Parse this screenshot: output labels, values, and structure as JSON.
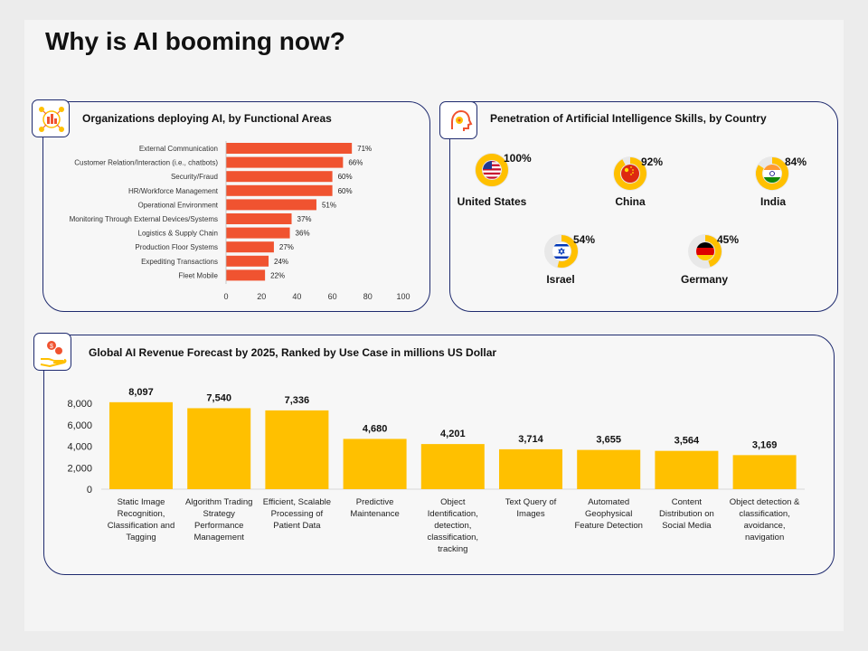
{
  "page": {
    "title": "Why is AI booming now?"
  },
  "colors": {
    "bar_red": "#f05330",
    "bar_yellow": "#ffc000",
    "border": "#1e2a6e"
  },
  "panel1": {
    "title": "Organizations deploying AI, by Functional Areas",
    "icon": "org-network-icon"
  },
  "panel2": {
    "title": "Penetration of Artificial Intelligence Skills, by Country",
    "icon": "ai-head-icon",
    "countries": [
      {
        "name": "United States",
        "pct": "100%",
        "value": 100,
        "flag": "us"
      },
      {
        "name": "China",
        "pct": "92%",
        "value": 92,
        "flag": "cn"
      },
      {
        "name": "India",
        "pct": "84%",
        "value": 84,
        "flag": "in"
      },
      {
        "name": "Israel",
        "pct": "54%",
        "value": 54,
        "flag": "il"
      },
      {
        "name": "Germany",
        "pct": "45%",
        "value": 45,
        "flag": "de"
      }
    ]
  },
  "panel3": {
    "title": "Global AI Revenue Forecast by 2025, Ranked by Use Case in millions US Dollar",
    "icon": "money-hand-icon"
  },
  "chart_data": [
    {
      "id": "functional-areas",
      "type": "bar",
      "orientation": "horizontal",
      "title": "Organizations deploying AI, by Functional Areas",
      "categories": [
        "External Communication",
        "Customer Relation/Interaction (i.e., chatbots)",
        "Security/Fraud",
        "HR/Workforce Management",
        "Operational Environment",
        "Monitoring Through External Devices/Systems",
        "Logistics & Supply Chain",
        "Production Floor Systems",
        "Expediting Transactions",
        "Fleet Mobile"
      ],
      "values": [
        71,
        66,
        60,
        60,
        51,
        37,
        36,
        27,
        24,
        22
      ],
      "labels": [
        "71%",
        "66%",
        "60%",
        "60%",
        "51%",
        "37%",
        "36%",
        "27%",
        "24%",
        "22%"
      ],
      "xlim": [
        0,
        100
      ],
      "xticks": [
        "0",
        "20",
        "40",
        "60",
        "80",
        "100"
      ],
      "grid": false
    },
    {
      "id": "revenue-forecast",
      "type": "bar",
      "orientation": "vertical",
      "title": "Global AI Revenue Forecast by 2025, Ranked by Use Case in millions US Dollar",
      "categories": [
        [
          "Static Image",
          "Recognition,",
          "Classification and",
          "Tagging"
        ],
        [
          "Algorithm Trading",
          "Strategy",
          "Performance",
          "Management"
        ],
        [
          "Efficient, Scalable",
          "Processing of",
          "Patient Data"
        ],
        [
          "Predictive",
          "Maintenance"
        ],
        [
          "Object",
          "Identification,",
          "detection,",
          "classification,",
          "tracking"
        ],
        [
          "Text Query of",
          "Images"
        ],
        [
          "Automated",
          "Geophysical",
          "Feature Detection"
        ],
        [
          "Content",
          "Distribution on",
          "Social Media"
        ],
        [
          "Object detection &",
          "classification,",
          "avoidance,",
          "navigation"
        ]
      ],
      "values": [
        8097,
        7540,
        7336,
        4680,
        4201,
        3714,
        3655,
        3564,
        3169
      ],
      "labels": [
        "8,097",
        "7,540",
        "7,336",
        "4,680",
        "4,201",
        "3,714",
        "3,655",
        "3,564",
        "3,169"
      ],
      "ylim": [
        0,
        8000
      ],
      "yticks": [
        "0",
        "2,000",
        "4,000",
        "6,000",
        "8,000"
      ],
      "grid": false
    }
  ]
}
